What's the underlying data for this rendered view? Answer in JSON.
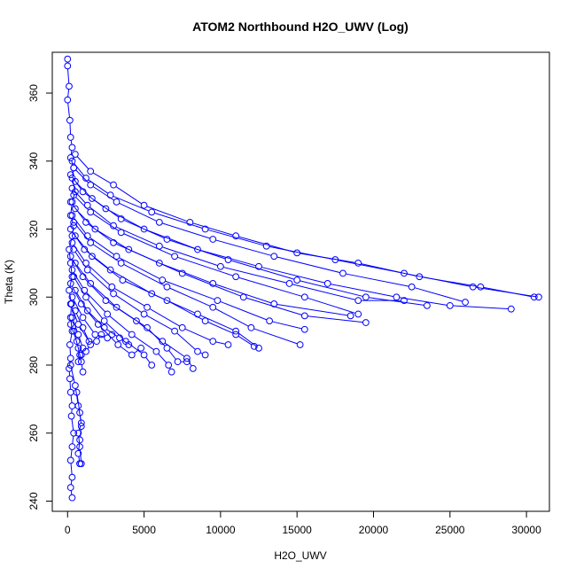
{
  "chart_data": {
    "type": "scatter",
    "title": "ATOM2 Northbound H2O_UWV (Log)",
    "xlabel": "H2O_UWV",
    "ylabel": "Theta (K)",
    "xlim": [
      -1000,
      31500
    ],
    "ylim": [
      237,
      372
    ],
    "xticks": [
      0,
      5000,
      10000,
      15000,
      20000,
      25000,
      30000
    ],
    "yticks": [
      240,
      260,
      280,
      300,
      320,
      340,
      360
    ],
    "colors": {
      "series": "#0000ff"
    },
    "grid": false,
    "legend": "none",
    "series": [
      {
        "points": [
          [
            0,
            370
          ],
          [
            0,
            368
          ],
          [
            100,
            362
          ],
          [
            0,
            358
          ],
          [
            150,
            352
          ],
          [
            200,
            347
          ],
          [
            300,
            344
          ],
          [
            200,
            341
          ],
          [
            400,
            338
          ],
          [
            300,
            335
          ],
          [
            500,
            331
          ],
          [
            300,
            328
          ],
          [
            200,
            324
          ],
          [
            400,
            321
          ],
          [
            300,
            318
          ],
          [
            100,
            314
          ],
          [
            200,
            310
          ],
          [
            300,
            306
          ],
          [
            100,
            302
          ],
          [
            250,
            298
          ],
          [
            200,
            294
          ],
          [
            300,
            290
          ],
          [
            150,
            286
          ],
          [
            200,
            282
          ],
          [
            100,
            279
          ],
          [
            150,
            276
          ],
          [
            200,
            272
          ],
          [
            300,
            268
          ],
          [
            250,
            265
          ],
          [
            400,
            260
          ],
          [
            300,
            256
          ],
          [
            200,
            252
          ],
          [
            300,
            247
          ],
          [
            200,
            244
          ],
          [
            300,
            241
          ]
        ]
      },
      {
        "points": [
          [
            500,
            342
          ],
          [
            1500,
            337
          ],
          [
            3000,
            333
          ],
          [
            5000,
            327
          ],
          [
            8000,
            322
          ],
          [
            11000,
            318
          ],
          [
            15000,
            313
          ],
          [
            19000,
            310
          ],
          [
            23000,
            306
          ],
          [
            27000,
            303
          ],
          [
            30500,
            300
          ]
        ]
      },
      {
        "points": [
          [
            300,
            340
          ],
          [
            1200,
            335
          ],
          [
            2800,
            330
          ],
          [
            5500,
            325
          ],
          [
            9000,
            320
          ],
          [
            13000,
            315
          ],
          [
            17500,
            311
          ],
          [
            22000,
            307
          ],
          [
            26500,
            303
          ],
          [
            30800,
            300
          ]
        ]
      },
      {
        "points": [
          [
            400,
            338
          ],
          [
            1500,
            333
          ],
          [
            3200,
            328
          ],
          [
            6000,
            322
          ],
          [
            9500,
            317
          ],
          [
            13500,
            312
          ],
          [
            18000,
            307
          ],
          [
            22500,
            303
          ],
          [
            26000,
            298.5
          ]
        ]
      },
      {
        "points": [
          [
            200,
            336
          ],
          [
            1000,
            331
          ],
          [
            2500,
            326
          ],
          [
            5000,
            320
          ],
          [
            8500,
            314
          ],
          [
            12500,
            309
          ],
          [
            17000,
            304
          ],
          [
            21500,
            300
          ],
          [
            25000,
            297.5
          ],
          [
            29000,
            296.5
          ]
        ]
      },
      {
        "points": [
          [
            500,
            334
          ],
          [
            1600,
            329
          ],
          [
            3500,
            323
          ],
          [
            6500,
            317
          ],
          [
            10500,
            311
          ],
          [
            15000,
            305
          ],
          [
            19500,
            300
          ],
          [
            23500,
            297.5
          ]
        ]
      },
      {
        "points": [
          [
            300,
            332
          ],
          [
            1300,
            327
          ],
          [
            3000,
            321
          ],
          [
            6000,
            315
          ],
          [
            10000,
            309
          ],
          [
            14500,
            304
          ],
          [
            19000,
            299
          ],
          [
            22000,
            299
          ]
        ]
      },
      {
        "points": [
          [
            400,
            330
          ],
          [
            1500,
            325
          ],
          [
            3500,
            319
          ],
          [
            7000,
            312
          ],
          [
            11000,
            306
          ],
          [
            15500,
            300
          ],
          [
            19000,
            295
          ]
        ]
      },
      {
        "points": [
          [
            200,
            328
          ],
          [
            1200,
            322
          ],
          [
            3000,
            316
          ],
          [
            6000,
            310
          ],
          [
            9500,
            304
          ],
          [
            13500,
            298
          ],
          [
            18500,
            294.5
          ]
        ]
      },
      {
        "points": [
          [
            500,
            326
          ],
          [
            1800,
            320
          ],
          [
            4000,
            314
          ],
          [
            7500,
            307
          ],
          [
            11500,
            300
          ],
          [
            15500,
            294.5
          ],
          [
            19500,
            292.5
          ]
        ]
      },
      {
        "points": [
          [
            300,
            324
          ],
          [
            1300,
            318
          ],
          [
            3200,
            312
          ],
          [
            6200,
            305
          ],
          [
            9800,
            299
          ],
          [
            13200,
            293
          ],
          [
            15500,
            290.5
          ]
        ]
      },
      {
        "points": [
          [
            400,
            322
          ],
          [
            1500,
            316
          ],
          [
            3500,
            310
          ],
          [
            6500,
            303
          ],
          [
            9500,
            297
          ],
          [
            12000,
            291
          ],
          [
            15200,
            286
          ]
        ]
      },
      {
        "points": [
          [
            200,
            320
          ],
          [
            1100,
            314
          ],
          [
            2800,
            308
          ],
          [
            5500,
            301
          ],
          [
            8500,
            295
          ],
          [
            11000,
            290
          ],
          [
            12500,
            285
          ]
        ]
      },
      {
        "points": [
          [
            500,
            318
          ],
          [
            1600,
            312
          ],
          [
            3600,
            305
          ],
          [
            6500,
            299
          ],
          [
            9000,
            293
          ],
          [
            11000,
            289
          ],
          [
            12200,
            285.5
          ]
        ]
      },
      {
        "points": [
          [
            300,
            316
          ],
          [
            1200,
            310
          ],
          [
            2900,
            303
          ],
          [
            5200,
            297
          ],
          [
            7500,
            291
          ],
          [
            9500,
            287
          ],
          [
            10500,
            286
          ]
        ]
      },
      {
        "points": [
          [
            400,
            314
          ],
          [
            1300,
            308
          ],
          [
            3000,
            301
          ],
          [
            5000,
            295
          ],
          [
            7000,
            290
          ],
          [
            8500,
            284
          ],
          [
            9000,
            283
          ]
        ]
      },
      {
        "points": [
          [
            200,
            312
          ],
          [
            1000,
            306
          ],
          [
            2500,
            299
          ],
          [
            4500,
            293
          ],
          [
            6200,
            287
          ],
          [
            7800,
            282
          ],
          [
            8200,
            279
          ]
        ]
      },
      {
        "points": [
          [
            500,
            310
          ],
          [
            1500,
            304
          ],
          [
            3200,
            297
          ],
          [
            5200,
            291
          ],
          [
            6500,
            285
          ],
          [
            7200,
            281
          ],
          [
            7800,
            281
          ]
        ]
      },
      {
        "points": [
          [
            300,
            308
          ],
          [
            1100,
            302
          ],
          [
            2600,
            295
          ],
          [
            4200,
            289
          ],
          [
            5800,
            284
          ],
          [
            6600,
            280
          ],
          [
            6800,
            278
          ]
        ]
      },
      {
        "points": [
          [
            400,
            306
          ],
          [
            1200,
            300
          ],
          [
            2400,
            293
          ],
          [
            3800,
            287
          ],
          [
            5000,
            283
          ],
          [
            5500,
            280
          ]
        ]
      },
      {
        "points": [
          [
            200,
            304
          ],
          [
            900,
            298
          ],
          [
            2000,
            292
          ],
          [
            3300,
            286
          ],
          [
            4200,
            283
          ],
          [
            4800,
            285
          ]
        ]
      },
      {
        "points": [
          [
            500,
            302
          ],
          [
            1300,
            296
          ],
          [
            2400,
            291
          ],
          [
            3400,
            288
          ],
          [
            4000,
            286
          ]
        ]
      },
      {
        "points": [
          [
            300,
            300
          ],
          [
            1000,
            294
          ],
          [
            1800,
            289
          ],
          [
            2600,
            288
          ],
          [
            2900,
            289
          ]
        ]
      },
      {
        "points": [
          [
            200,
            298
          ],
          [
            700,
            292
          ],
          [
            1400,
            287
          ],
          [
            1900,
            287
          ],
          [
            2200,
            289
          ]
        ]
      },
      {
        "points": [
          [
            500,
            296
          ],
          [
            1000,
            291
          ],
          [
            1500,
            286
          ],
          [
            1200,
            284
          ]
        ]
      },
      {
        "points": [
          [
            300,
            294
          ],
          [
            700,
            289
          ],
          [
            1000,
            285
          ],
          [
            900,
            283
          ]
        ]
      },
      {
        "points": [
          [
            200,
            292
          ],
          [
            600,
            287
          ],
          [
            800,
            283
          ],
          [
            700,
            281
          ]
        ]
      },
      {
        "points": [
          [
            400,
            290
          ],
          [
            700,
            285
          ],
          [
            900,
            281
          ],
          [
            1000,
            278
          ]
        ]
      },
      {
        "points": [
          [
            200,
            280
          ],
          [
            500,
            274
          ],
          [
            700,
            268
          ],
          [
            900,
            263
          ],
          [
            700,
            260
          ],
          [
            800,
            256
          ],
          [
            900,
            251
          ],
          [
            800,
            251
          ]
        ]
      },
      {
        "points": [
          [
            600,
            272
          ],
          [
            800,
            266
          ],
          [
            900,
            262
          ],
          [
            800,
            258
          ],
          [
            700,
            254
          ],
          [
            800,
            251
          ]
        ]
      }
    ]
  }
}
